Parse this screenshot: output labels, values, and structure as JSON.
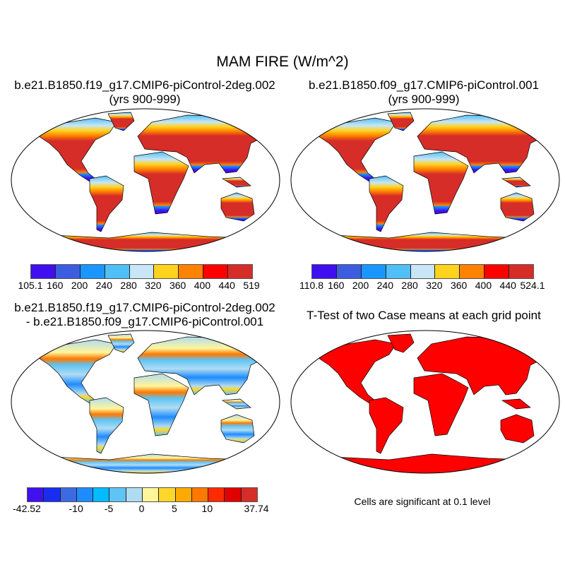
{
  "title": "MAM FIRE (W/m^2)",
  "panels": [
    {
      "title_line1": "b.e21.B1850.f19_g17.CMIP6-piControl-2deg.002",
      "title_line2": "(yrs 900-999)",
      "colorbar": {
        "labels": [
          "105.1",
          "160",
          "200",
          "240",
          "280",
          "320",
          "360",
          "400",
          "440",
          "519"
        ],
        "colors": [
          "#3f0ff0",
          "#3c5de0",
          "#1996ff",
          "#50bff5",
          "#c8e6f5",
          "#ffd21e",
          "#ff8200",
          "#ff0000",
          "#d62d28"
        ]
      }
    },
    {
      "title_line1": "b.e21.B1850.f09_g17.CMIP6-piControl.001",
      "title_line2": "(yrs 900-999)",
      "colorbar": {
        "labels": [
          "110.8",
          "160",
          "200",
          "240",
          "280",
          "320",
          "360",
          "400",
          "440",
          "524.1"
        ],
        "colors": [
          "#3f0ff0",
          "#3c5de0",
          "#1996ff",
          "#50bff5",
          "#c8e6f5",
          "#ffd21e",
          "#ff8200",
          "#ff0000",
          "#d62d28"
        ]
      }
    },
    {
      "title_line1": "b.e21.B1850.f19_g17.CMIP6-piControl-2deg.002",
      "title_line2": "- b.e21.B1850.f09_g17.CMIP6-piControl.001",
      "colorbar": {
        "labels": [
          "-42.52",
          "-10",
          "-5",
          "0",
          "5",
          "10",
          "37.74"
        ],
        "label_positions": [
          0,
          3,
          5,
          7,
          9,
          11,
          14
        ],
        "colors": [
          "#4010f0",
          "#1a2cf0",
          "#3c6ae0",
          "#1e8cff",
          "#00bbff",
          "#5ec4f5",
          "#b0dcf2",
          "#fff59a",
          "#ffd72a",
          "#ffaa00",
          "#ff7800",
          "#ff2a00",
          "#e00000",
          "#d62d28"
        ]
      }
    },
    {
      "title_line1": "T-Test of two Case means at each grid point",
      "note": "Cells are significant at 0.1 level",
      "fill": "#ff0000"
    }
  ]
}
